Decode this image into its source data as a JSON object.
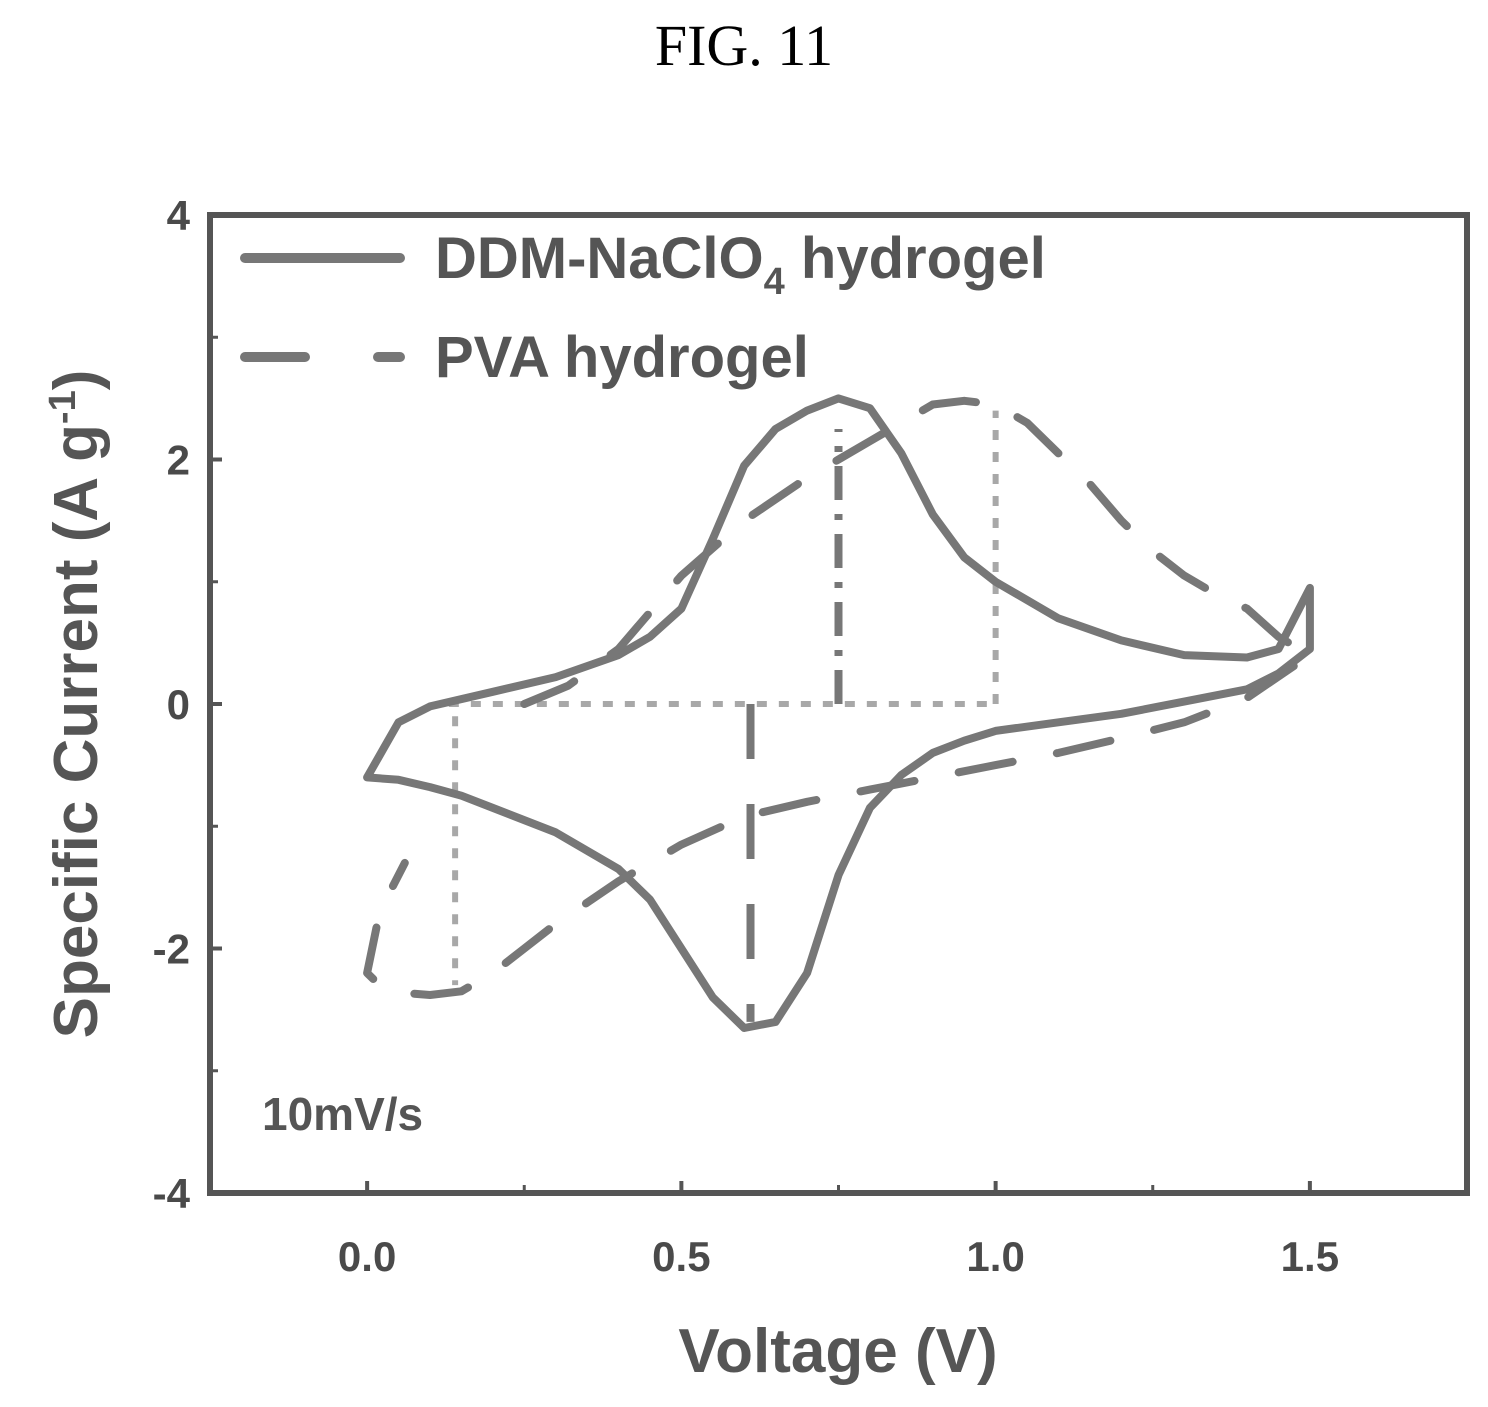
{
  "figure": {
    "title": "FIG. 11"
  },
  "chart_data": {
    "type": "line",
    "title": "",
    "xlabel": "Voltage (V)",
    "ylabel": "Specific Current (A g",
    "ylabel_sup": "-1",
    "ylabel_end": ")",
    "xlim": [
      -0.25,
      1.75
    ],
    "ylim": [
      -4,
      4
    ],
    "xticks": [
      0.0,
      0.5,
      1.0,
      1.5
    ],
    "xtick_labels": [
      "0.0",
      "0.5",
      "1.0",
      "1.5"
    ],
    "yticks": [
      -4,
      -2,
      0,
      2,
      4
    ],
    "ytick_labels": [
      "-4",
      "-2",
      "0",
      "2",
      "4"
    ],
    "grid": false,
    "legend_position": "top-left",
    "annotation": "10mV/s",
    "series": [
      {
        "name": "DDM-NaClO",
        "name_sub": "4",
        "name_rest": " hydrogel",
        "style": "solid",
        "color": "#777777",
        "x": [
          0.0,
          0.05,
          0.1,
          0.2,
          0.3,
          0.4,
          0.45,
          0.5,
          0.55,
          0.6,
          0.65,
          0.7,
          0.75,
          0.8,
          0.85,
          0.9,
          0.95,
          1.0,
          1.1,
          1.2,
          1.3,
          1.4,
          1.45,
          1.5,
          1.5,
          1.45,
          1.4,
          1.3,
          1.2,
          1.1,
          1.0,
          0.95,
          0.9,
          0.85,
          0.8,
          0.75,
          0.7,
          0.65,
          0.6,
          0.55,
          0.5,
          0.45,
          0.4,
          0.3,
          0.2,
          0.15,
          0.1,
          0.05,
          0.0
        ],
        "y": [
          -0.6,
          -0.15,
          -0.02,
          0.1,
          0.22,
          0.4,
          0.55,
          0.78,
          1.35,
          1.95,
          2.25,
          2.4,
          2.5,
          2.42,
          2.05,
          1.55,
          1.2,
          1.0,
          0.7,
          0.52,
          0.4,
          0.38,
          0.45,
          0.95,
          0.45,
          0.25,
          0.12,
          0.02,
          -0.08,
          -0.15,
          -0.22,
          -0.3,
          -0.4,
          -0.58,
          -0.85,
          -1.4,
          -2.2,
          -2.6,
          -2.65,
          -2.4,
          -2.0,
          -1.6,
          -1.35,
          -1.05,
          -0.85,
          -0.75,
          -0.68,
          -0.62,
          -0.6
        ]
      },
      {
        "name": "PVA hydrogel",
        "style": "dashed",
        "color": "#777777",
        "x": [
          0.25,
          0.32,
          0.4,
          0.5,
          0.6,
          0.7,
          0.75,
          0.8,
          0.85,
          0.9,
          0.95,
          1.0,
          1.05,
          1.1,
          1.15,
          1.2,
          1.25,
          1.3,
          1.35,
          1.4,
          1.45,
          1.5,
          1.5,
          1.4,
          1.3,
          1.2,
          1.1,
          1.0,
          0.9,
          0.8,
          0.7,
          0.6,
          0.5,
          0.4,
          0.3,
          0.25,
          0.2,
          0.15,
          0.1,
          0.05,
          0.02,
          0.0,
          0.02,
          0.06
        ],
        "y": [
          0.0,
          0.15,
          0.45,
          1.05,
          1.5,
          1.85,
          2.0,
          2.15,
          2.3,
          2.45,
          2.48,
          2.45,
          2.3,
          2.05,
          1.8,
          1.5,
          1.25,
          1.05,
          0.9,
          0.78,
          0.55,
          0.4,
          0.4,
          0.05,
          -0.15,
          -0.28,
          -0.4,
          -0.5,
          -0.6,
          -0.7,
          -0.8,
          -0.92,
          -1.15,
          -1.45,
          -1.8,
          -2.0,
          -2.2,
          -2.35,
          -2.38,
          -2.36,
          -2.3,
          -2.2,
          -1.7,
          -1.3
        ]
      }
    ],
    "peak_markers": [
      {
        "style": "dash-dot",
        "from": [
          0.75,
          0.0
        ],
        "to": [
          0.75,
          2.25
        ]
      },
      {
        "style": "dotted",
        "from": [
          0.13,
          0.0
        ],
        "to": [
          1.0,
          0.0
        ]
      },
      {
        "style": "dotted",
        "from": [
          1.0,
          0.0
        ],
        "to": [
          1.0,
          2.4
        ]
      },
      {
        "style": "dashed",
        "from": [
          0.61,
          0.0
        ],
        "to": [
          0.61,
          -2.6
        ]
      },
      {
        "style": "dotted",
        "from": [
          0.14,
          -0.1
        ],
        "to": [
          0.14,
          -2.3
        ]
      }
    ]
  }
}
